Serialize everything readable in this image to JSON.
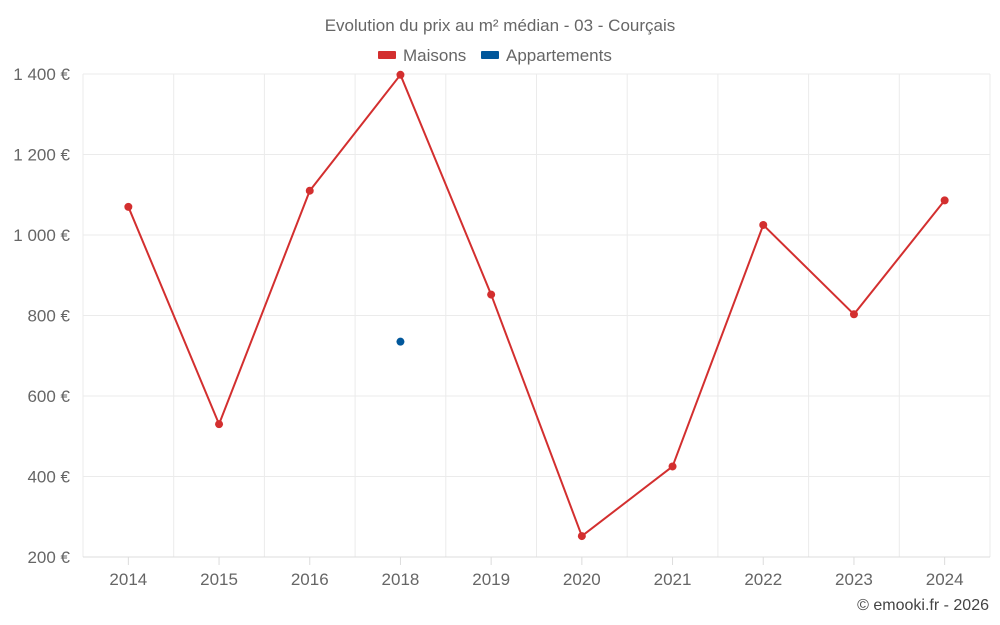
{
  "chart_data": {
    "type": "line",
    "title": "Evolution du prix au m² médian - 03 - Courçais",
    "categories": [
      "2014",
      "2015",
      "2016",
      "2018",
      "2019",
      "2020",
      "2021",
      "2022",
      "2023",
      "2024"
    ],
    "y_ticks": [
      "200 €",
      "400 €",
      "600 €",
      "800 €",
      "1 000 €",
      "1 200 €",
      "1 400 €"
    ],
    "ylim": [
      200,
      1400
    ],
    "grid": true,
    "legend_position": "top-center",
    "series": [
      {
        "name": "Maisons",
        "color": "#d32f2f",
        "values": [
          1070,
          530,
          1110,
          1398,
          852,
          252,
          425,
          1025,
          803,
          1086
        ]
      },
      {
        "name": "Appartements",
        "color": "#01579b",
        "values": [
          null,
          null,
          null,
          735,
          null,
          null,
          null,
          null,
          null,
          null
        ]
      }
    ],
    "credit": "© emooki.fr - 2026"
  }
}
